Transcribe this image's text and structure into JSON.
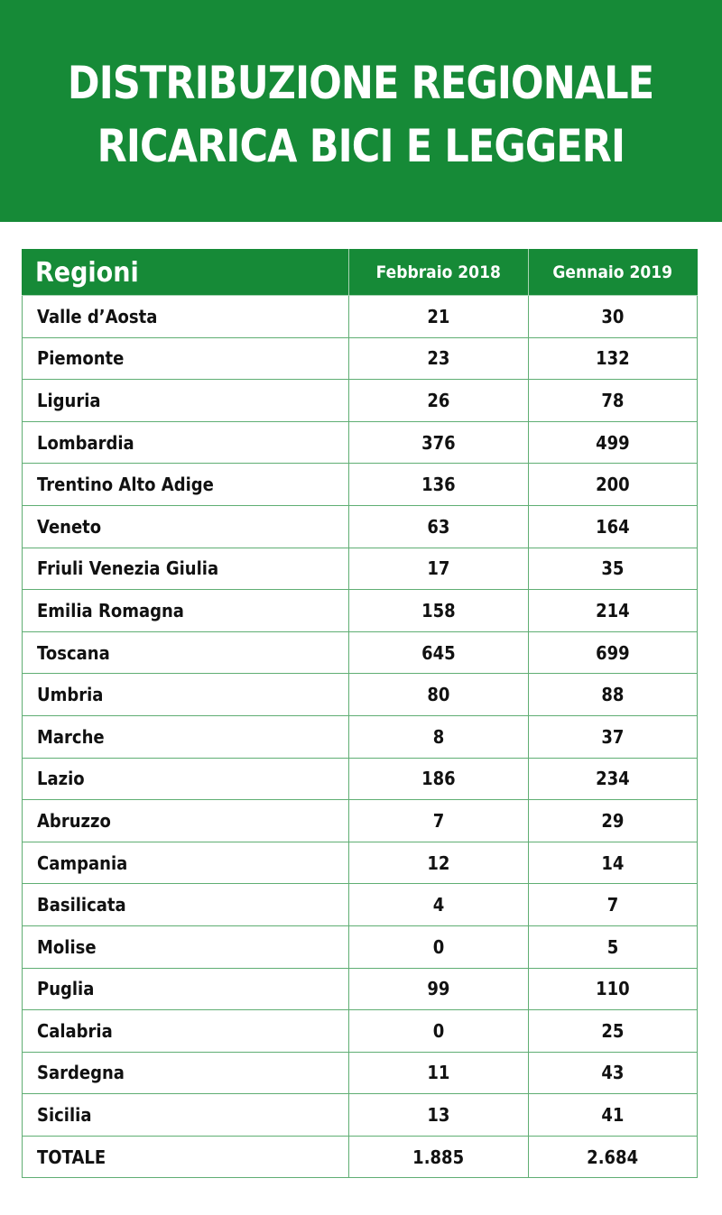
{
  "title": {
    "line1": "DISTRIBUZIONE REGIONALE",
    "line2": "RICARICA BICI E LEGGERI"
  },
  "colors": {
    "brand_green": "#168a37",
    "border_green": "#5fae73",
    "text": "#111111"
  },
  "table": {
    "headers": [
      "Regioni",
      "Febbraio 2018",
      "Gennaio 2019"
    ],
    "rows": [
      {
        "region": "Valle d’Aosta",
        "feb_2018": "21",
        "gen_2019": "30"
      },
      {
        "region": "Piemonte",
        "feb_2018": "23",
        "gen_2019": "132"
      },
      {
        "region": "Liguria",
        "feb_2018": "26",
        "gen_2019": "78"
      },
      {
        "region": "Lombardia",
        "feb_2018": "376",
        "gen_2019": "499"
      },
      {
        "region": "Trentino Alto Adige",
        "feb_2018": "136",
        "gen_2019": "200"
      },
      {
        "region": "Veneto",
        "feb_2018": "63",
        "gen_2019": "164"
      },
      {
        "region": "Friuli Venezia Giulia",
        "feb_2018": "17",
        "gen_2019": "35"
      },
      {
        "region": "Emilia Romagna",
        "feb_2018": "158",
        "gen_2019": "214"
      },
      {
        "region": "Toscana",
        "feb_2018": "645",
        "gen_2019": "699"
      },
      {
        "region": "Umbria",
        "feb_2018": "80",
        "gen_2019": "88"
      },
      {
        "region": "Marche",
        "feb_2018": "8",
        "gen_2019": "37"
      },
      {
        "region": "Lazio",
        "feb_2018": "186",
        "gen_2019": "234"
      },
      {
        "region": "Abruzzo",
        "feb_2018": "7",
        "gen_2019": "29"
      },
      {
        "region": "Campania",
        "feb_2018": "12",
        "gen_2019": "14"
      },
      {
        "region": "Basilicata",
        "feb_2018": "4",
        "gen_2019": "7"
      },
      {
        "region": "Molise",
        "feb_2018": "0",
        "gen_2019": "5"
      },
      {
        "region": "Puglia",
        "feb_2018": "99",
        "gen_2019": "110"
      },
      {
        "region": "Calabria",
        "feb_2018": "0",
        "gen_2019": "25"
      },
      {
        "region": "Sardegna",
        "feb_2018": "11",
        "gen_2019": "43"
      },
      {
        "region": "Sicilia",
        "feb_2018": "13",
        "gen_2019": "41"
      }
    ],
    "total": {
      "label": "TOTALE",
      "feb_2018": "1.885",
      "gen_2019": "2.684"
    }
  }
}
